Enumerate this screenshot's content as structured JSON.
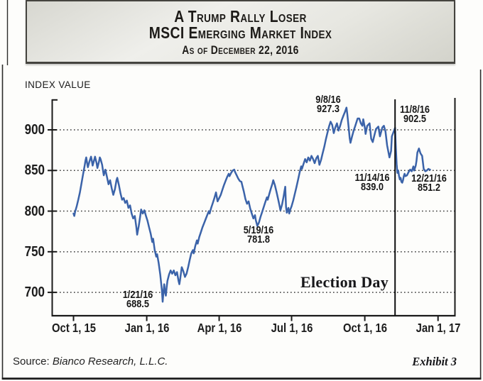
{
  "chart_data": {
    "type": "line",
    "title": "A Trump Rally Loser",
    "subtitle": "MSCI Emerging Market Index",
    "as_of_line": "As of December 22, 2016",
    "ylabel": "INDEX VALUE",
    "grid": "horizontal dotted",
    "legend_position": "none",
    "y_range": [
      671,
      937
    ],
    "x_range_days": [
      -27,
      479
    ],
    "x_unit": "days since Oct 1, 2015",
    "y_ticks": [
      {
        "label": "900",
        "value": 900
      },
      {
        "label": "850",
        "value": 850
      },
      {
        "label": "800",
        "value": 800
      },
      {
        "label": "750",
        "value": 750
      },
      {
        "label": "700",
        "value": 700
      }
    ],
    "x_ticks": [
      {
        "label": "Oct 1, 15",
        "day": 0
      },
      {
        "label": "Jan 1, 16",
        "day": 92
      },
      {
        "label": "Apr 1, 16",
        "day": 183
      },
      {
        "label": "Jul 1, 16",
        "day": 274
      },
      {
        "label": "Oct 1, 16",
        "day": 366
      },
      {
        "label": "Jan 1, 17",
        "day": 458
      }
    ],
    "election_line": {
      "label": "Election Day",
      "day": 404
    },
    "annotations": [
      {
        "id": "jan-low",
        "line1": "1/21/16",
        "line2": "688.5",
        "day": 112,
        "value": 688.5
      },
      {
        "id": "may-low",
        "line1": "5/19/16",
        "line2": "781.8",
        "day": 231,
        "value": 781.8
      },
      {
        "id": "sep-peak",
        "line1": "9/8/16",
        "line2": "927.3",
        "day": 343,
        "value": 927.3
      },
      {
        "id": "election",
        "line1": "11/8/16",
        "line2": "902.5",
        "day": 404,
        "value": 902.5
      },
      {
        "id": "nov-low",
        "line1": "11/14/16",
        "line2": "839.0",
        "day": 410,
        "value": 839.0
      },
      {
        "id": "dec-end",
        "line1": "12/21/16",
        "line2": "851.2",
        "day": 447,
        "value": 851.2
      }
    ],
    "series": [
      {
        "name": "MSCI Emerging Market Index",
        "color": "#3b63a9",
        "points": [
          [
            0,
            797
          ],
          [
            1,
            794
          ],
          [
            2,
            799
          ],
          [
            4,
            806
          ],
          [
            6,
            814
          ],
          [
            8,
            823
          ],
          [
            10,
            834
          ],
          [
            12,
            845
          ],
          [
            14,
            856
          ],
          [
            15,
            862
          ],
          [
            16,
            866
          ],
          [
            17,
            860
          ],
          [
            18,
            854
          ],
          [
            20,
            861
          ],
          [
            22,
            867
          ],
          [
            23,
            862
          ],
          [
            24,
            856
          ],
          [
            26,
            863
          ],
          [
            27,
            867
          ],
          [
            29,
            859
          ],
          [
            30,
            853
          ],
          [
            32,
            861
          ],
          [
            33,
            866
          ],
          [
            34,
            864
          ],
          [
            36,
            857
          ],
          [
            37,
            850
          ],
          [
            38,
            844
          ],
          [
            40,
            851
          ],
          [
            42,
            842
          ],
          [
            44,
            833
          ],
          [
            46,
            838
          ],
          [
            48,
            828
          ],
          [
            50,
            820
          ],
          [
            52,
            827
          ],
          [
            54,
            838
          ],
          [
            55,
            841
          ],
          [
            57,
            832
          ],
          [
            59,
            822
          ],
          [
            61,
            814
          ],
          [
            63,
            816
          ],
          [
            65,
            810
          ],
          [
            67,
            813
          ],
          [
            69,
            804
          ],
          [
            71,
            807
          ],
          [
            73,
            797
          ],
          [
            75,
            791
          ],
          [
            77,
            794
          ],
          [
            79,
            780
          ],
          [
            80,
            771
          ],
          [
            82,
            782
          ],
          [
            84,
            795
          ],
          [
            85,
            802
          ],
          [
            87,
            797
          ],
          [
            89,
            801
          ],
          [
            91,
            794
          ],
          [
            93,
            788
          ],
          [
            95,
            780
          ],
          [
            97,
            772
          ],
          [
            99,
            762
          ],
          [
            100,
            766
          ],
          [
            102,
            752
          ],
          [
            104,
            744
          ],
          [
            105,
            747
          ],
          [
            107,
            736
          ],
          [
            109,
            722
          ],
          [
            110,
            712
          ],
          [
            111,
            703
          ],
          [
            112,
            688.5
          ],
          [
            113,
            700
          ],
          [
            114,
            710
          ],
          [
            115,
            700
          ],
          [
            116,
            696
          ],
          [
            117,
            706
          ],
          [
            118,
            714
          ],
          [
            120,
            722
          ],
          [
            122,
            727
          ],
          [
            124,
            723
          ],
          [
            126,
            727
          ],
          [
            128,
            721
          ],
          [
            130,
            725
          ],
          [
            132,
            714
          ],
          [
            133,
            710
          ],
          [
            134,
            716
          ],
          [
            135,
            724
          ],
          [
            136,
            731
          ],
          [
            138,
            726
          ],
          [
            140,
            719
          ],
          [
            142,
            723
          ],
          [
            144,
            731
          ],
          [
            146,
            740
          ],
          [
            148,
            748
          ],
          [
            150,
            752
          ],
          [
            151,
            748
          ],
          [
            153,
            757
          ],
          [
            155,
            764
          ],
          [
            156,
            760
          ],
          [
            158,
            768
          ],
          [
            160,
            774
          ],
          [
            162,
            780
          ],
          [
            164,
            785
          ],
          [
            166,
            790
          ],
          [
            168,
            795
          ],
          [
            170,
            800
          ],
          [
            171,
            797
          ],
          [
            173,
            804
          ],
          [
            175,
            810
          ],
          [
            177,
            816
          ],
          [
            179,
            823
          ],
          [
            181,
            812
          ],
          [
            183,
            816
          ],
          [
            185,
            820
          ],
          [
            187,
            826
          ],
          [
            189,
            832
          ],
          [
            191,
            837
          ],
          [
            193,
            842
          ],
          [
            195,
            846
          ],
          [
            196,
            843
          ],
          [
            198,
            847
          ],
          [
            200,
            850
          ],
          [
            202,
            851
          ],
          [
            203,
            848
          ],
          [
            205,
            844
          ],
          [
            207,
            840
          ],
          [
            209,
            837
          ],
          [
            211,
            836
          ],
          [
            212,
            832
          ],
          [
            214,
            824
          ],
          [
            216,
            815
          ],
          [
            218,
            809
          ],
          [
            220,
            812
          ],
          [
            222,
            803
          ],
          [
            224,
            797
          ],
          [
            226,
            791
          ],
          [
            228,
            795
          ],
          [
            229,
            789
          ],
          [
            231,
            781.8
          ],
          [
            233,
            786
          ],
          [
            235,
            793
          ],
          [
            237,
            799
          ],
          [
            239,
            805
          ],
          [
            241,
            811
          ],
          [
            243,
            817
          ],
          [
            244,
            814
          ],
          [
            246,
            821
          ],
          [
            248,
            828
          ],
          [
            250,
            834
          ],
          [
            251,
            838
          ],
          [
            253,
            832
          ],
          [
            255,
            824
          ],
          [
            257,
            815
          ],
          [
            259,
            806
          ],
          [
            260,
            801
          ],
          [
            262,
            808
          ],
          [
            264,
            818
          ],
          [
            265,
            824
          ],
          [
            266,
            830
          ],
          [
            267,
            805
          ],
          [
            268,
            798
          ],
          [
            270,
            804
          ],
          [
            271,
            797
          ],
          [
            272,
            801
          ],
          [
            274,
            806
          ],
          [
            276,
            813
          ],
          [
            278,
            821
          ],
          [
            280,
            829
          ],
          [
            282,
            838
          ],
          [
            284,
            847
          ],
          [
            286,
            855
          ],
          [
            287,
            852
          ],
          [
            289,
            858
          ],
          [
            291,
            864
          ],
          [
            293,
            860
          ],
          [
            295,
            866
          ],
          [
            297,
            862
          ],
          [
            299,
            868
          ],
          [
            301,
            864
          ],
          [
            303,
            859
          ],
          [
            305,
            865
          ],
          [
            307,
            868
          ],
          [
            309,
            857
          ],
          [
            311,
            863
          ],
          [
            313,
            871
          ],
          [
            315,
            879
          ],
          [
            317,
            888
          ],
          [
            319,
            896
          ],
          [
            321,
            904
          ],
          [
            323,
            910
          ],
          [
            325,
            906
          ],
          [
            327,
            896
          ],
          [
            329,
            903
          ],
          [
            331,
            908
          ],
          [
            333,
            899
          ],
          [
            335,
            905
          ],
          [
            337,
            912
          ],
          [
            339,
            917
          ],
          [
            341,
            922
          ],
          [
            343,
            927.3
          ],
          [
            344,
            919
          ],
          [
            346,
            900
          ],
          [
            347,
            890
          ],
          [
            348,
            884
          ],
          [
            350,
            892
          ],
          [
            352,
            899
          ],
          [
            354,
            905
          ],
          [
            356,
            911
          ],
          [
            357,
            914
          ],
          [
            359,
            914
          ],
          [
            361,
            908
          ],
          [
            363,
            905
          ],
          [
            364,
            913
          ],
          [
            366,
            903
          ],
          [
            367,
            895
          ],
          [
            369,
            905
          ],
          [
            372,
            908
          ],
          [
            374,
            889
          ],
          [
            376,
            885
          ],
          [
            378,
            893
          ],
          [
            380,
            901
          ],
          [
            383,
            904
          ],
          [
            385,
            892
          ],
          [
            388,
            903
          ],
          [
            390,
            905
          ],
          [
            392,
            898
          ],
          [
            394,
            881
          ],
          [
            396,
            871
          ],
          [
            397,
            866
          ],
          [
            399,
            874
          ],
          [
            400,
            892
          ],
          [
            402,
            897
          ],
          [
            404,
            902.5
          ],
          [
            405,
            878
          ],
          [
            406,
            858
          ],
          [
            407,
            847
          ],
          [
            408,
            850
          ],
          [
            409,
            843
          ],
          [
            410,
            839
          ],
          [
            411,
            841
          ],
          [
            412,
            836
          ],
          [
            413,
            835
          ],
          [
            414,
            838
          ],
          [
            415,
            843
          ],
          [
            416,
            846
          ],
          [
            417,
            843
          ],
          [
            419,
            844
          ],
          [
            421,
            848
          ],
          [
            423,
            851
          ],
          [
            425,
            849
          ],
          [
            427,
            855
          ],
          [
            428,
            850
          ],
          [
            430,
            856
          ],
          [
            431,
            862
          ],
          [
            432,
            872
          ],
          [
            434,
            877
          ],
          [
            435,
            874
          ],
          [
            436,
            871
          ],
          [
            438,
            868
          ],
          [
            439,
            860
          ],
          [
            440,
            852
          ],
          [
            442,
            849
          ],
          [
            444,
            850
          ],
          [
            446,
            852
          ],
          [
            447,
            851.2
          ],
          [
            448,
            851
          ]
        ]
      }
    ],
    "colors": {
      "line": "#3b63a9",
      "grid_dots": "#3a3a3a",
      "axis": "#1a1a1a"
    }
  },
  "footer": {
    "source_prefix": "Source:",
    "source_name": "Bianco Research, L.L.C.",
    "exhibit": "Exhibit 3"
  }
}
